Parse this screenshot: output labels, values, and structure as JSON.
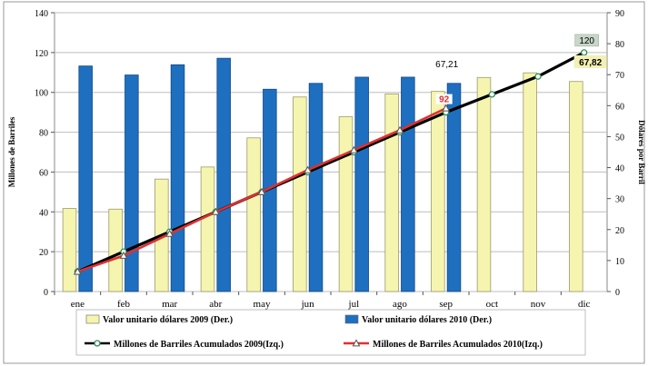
{
  "chart_data": {
    "type": "bar",
    "categories": [
      "ene",
      "feb",
      "mar",
      "abr",
      "may",
      "jun",
      "jul",
      "ago",
      "sep",
      "oct",
      "nov",
      "dic"
    ],
    "ylabel_left": "Millones de Barriles",
    "ylabel_right": "Dólares por Barril",
    "ylim_left": [
      0,
      140
    ],
    "yticks_left": [
      0,
      20,
      40,
      60,
      80,
      100,
      120,
      140
    ],
    "ylim_right": [
      0,
      90
    ],
    "yticks_right": [
      0,
      10,
      20,
      30,
      40,
      50,
      60,
      70,
      80,
      90
    ],
    "grid": true,
    "legend_position": "bottom",
    "series": [
      {
        "name": "Valor unitario dólares 2009 (Der.)",
        "kind": "bar",
        "axis": "right",
        "color": "#f5f5b0",
        "values": [
          26.8,
          26.6,
          36.3,
          40.2,
          49.6,
          62.8,
          56.4,
          63.8,
          64.6,
          69.1,
          70.6,
          67.8
        ]
      },
      {
        "name": "Valor unitario dólares 2010 (Der.)",
        "kind": "bar",
        "axis": "right",
        "color": "#1e6fc0",
        "values": [
          72.8,
          69.9,
          73.2,
          75.3,
          65.3,
          67.2,
          69.2,
          69.2,
          67.2,
          null,
          null,
          null
        ]
      },
      {
        "name": "Millones de Barriles Acumulados 2009(Izq.)",
        "kind": "line",
        "axis": "left",
        "color": "#000000",
        "values": [
          10,
          20,
          30,
          40,
          50,
          60,
          70,
          80,
          90,
          99,
          108,
          120
        ]
      },
      {
        "name": "Millones de Barriles Acumulados 2010(Izq.)",
        "kind": "line",
        "axis": "left",
        "color": "#e03030",
        "values": [
          10,
          18,
          29,
          40,
          50,
          61,
          71,
          81,
          92,
          null,
          null,
          null
        ]
      }
    ],
    "annotations": [
      {
        "text": "67,21",
        "category": "sep"
      },
      {
        "text": "92",
        "category": "sep"
      },
      {
        "text": "120",
        "category": "dic"
      },
      {
        "text": "67,82",
        "category": "dic"
      }
    ]
  }
}
